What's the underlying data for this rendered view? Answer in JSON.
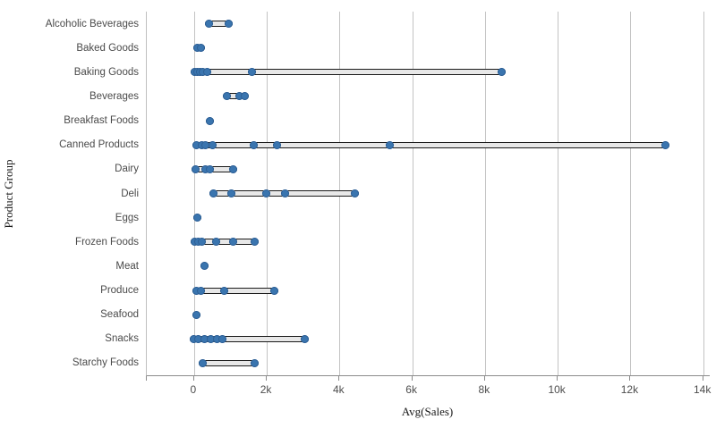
{
  "chart_data": {
    "type": "strip",
    "title": "",
    "xlabel": "Avg(Sales)",
    "ylabel": "Product Group",
    "xlim": [
      -1300,
      14180
    ],
    "grid": "vertical",
    "x_ticks": [
      {
        "value": 0,
        "label": "0"
      },
      {
        "value": 2000,
        "label": "2k"
      },
      {
        "value": 4000,
        "label": "4k"
      },
      {
        "value": 6000,
        "label": "6k"
      },
      {
        "value": 8000,
        "label": "8k"
      },
      {
        "value": 10000,
        "label": "10k"
      },
      {
        "value": 12000,
        "label": "12k"
      },
      {
        "value": 14000,
        "label": "14k"
      }
    ],
    "categories": [
      "Alcoholic Beverages",
      "Baked Goods",
      "Baking Goods",
      "Beverages",
      "Breakfast Foods",
      "Canned Products",
      "Dairy",
      "Deli",
      "Eggs",
      "Frozen Foods",
      "Meat",
      "Produce",
      "Seafood",
      "Snacks",
      "Starchy Foods"
    ],
    "series": [
      {
        "category": "Alcoholic Beverages",
        "points": [
          410,
          960
        ]
      },
      {
        "category": "Baked Goods",
        "points": [
          100,
          200
        ]
      },
      {
        "category": "Baking Goods",
        "points": [
          10,
          80,
          160,
          250,
          350,
          1600,
          8460
        ]
      },
      {
        "category": "Beverages",
        "points": [
          910,
          1240,
          1390
        ]
      },
      {
        "category": "Breakfast Foods",
        "points": [
          430
        ]
      },
      {
        "category": "Canned Products",
        "points": [
          70,
          210,
          320,
          500,
          1650,
          2280,
          5390,
          12960
        ]
      },
      {
        "category": "Dairy",
        "points": [
          40,
          310,
          430,
          1070
        ]
      },
      {
        "category": "Deli",
        "points": [
          530,
          1030,
          1980,
          2510,
          4420
        ]
      },
      {
        "category": "Eggs",
        "points": [
          100
        ]
      },
      {
        "category": "Frozen Foods",
        "points": [
          20,
          120,
          220,
          610,
          1080,
          1670
        ]
      },
      {
        "category": "Meat",
        "points": [
          280
        ]
      },
      {
        "category": "Produce",
        "points": [
          70,
          180,
          820,
          2200
        ]
      },
      {
        "category": "Seafood",
        "points": [
          70
        ]
      },
      {
        "category": "Snacks",
        "points": [
          0,
          120,
          280,
          450,
          620,
          780,
          3050
        ]
      },
      {
        "category": "Starchy Foods",
        "points": [
          230,
          1670
        ]
      }
    ]
  },
  "colors": {
    "point": "#3a75af",
    "point_edge": "#2e5f94",
    "bar_fill": "#e8e8e8",
    "bar_border": "#1a1a1a",
    "gridline": "#c3c3c3",
    "axis_line": "#8c8c8c",
    "tick_text": "#4d4d4d",
    "category_text": "#4a4a4a",
    "title_text": "#1a1a1a"
  }
}
